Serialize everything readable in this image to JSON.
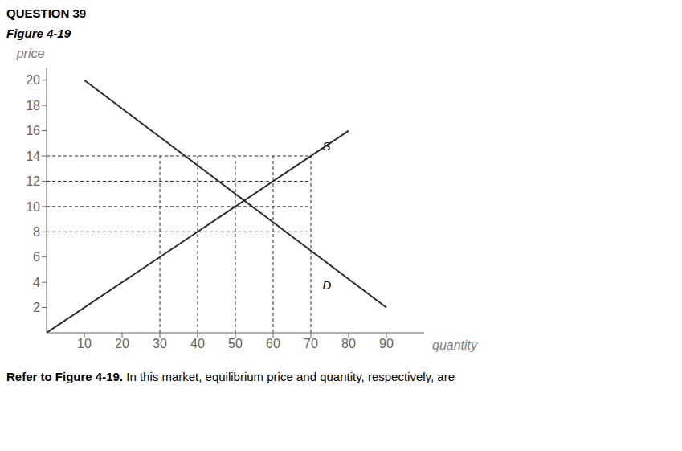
{
  "chart_data": {
    "type": "line",
    "title": "QUESTION 39",
    "subtitle": "Figure 4-19",
    "x_label": "quantity",
    "y_label": "price",
    "xlim": [
      0,
      100
    ],
    "ylim": [
      0,
      21
    ],
    "xticks": [
      10,
      20,
      30,
      40,
      50,
      60,
      70,
      80,
      90
    ],
    "yticks": [
      2,
      4,
      6,
      8,
      10,
      12,
      14,
      16,
      18,
      20
    ],
    "grid": false,
    "series": [
      {
        "x": [
          0,
          80
        ],
        "values": [
          0,
          16
        ],
        "color": "#2b2b2b",
        "line_style": "solid"
      },
      {
        "x": [
          10,
          90
        ],
        "values": [
          20,
          2
        ],
        "color": "#2b2b2b",
        "line_style": "solid"
      },
      {
        "x": [
          30,
          30
        ],
        "values": [
          0,
          14
        ],
        "color": "#2b2b2b",
        "line_style": "dashed"
      },
      {
        "x": [
          40,
          40
        ],
        "values": [
          0,
          14
        ],
        "color": "#2b2b2b",
        "line_style": "dashed"
      },
      {
        "x": [
          50,
          50
        ],
        "values": [
          0,
          14
        ],
        "color": "#2b2b2b",
        "line_style": "dashed"
      },
      {
        "x": [
          60,
          60
        ],
        "values": [
          0,
          14
        ],
        "color": "#2b2b2b",
        "line_style": "dashed"
      },
      {
        "x": [
          70,
          70
        ],
        "values": [
          0,
          14
        ],
        "color": "#2b2b2b",
        "line_style": "dashed"
      },
      {
        "x": [
          0,
          70
        ],
        "values": [
          8,
          8
        ],
        "color": "#2b2b2b",
        "line_style": "dashed"
      },
      {
        "x": [
          0,
          70
        ],
        "values": [
          10,
          10
        ],
        "color": "#2b2b2b",
        "line_style": "dashed"
      },
      {
        "x": [
          0,
          70
        ],
        "values": [
          12,
          12
        ],
        "color": "#2b2b2b",
        "line_style": "dashed"
      },
      {
        "x": [
          0,
          70
        ],
        "values": [
          14,
          14
        ],
        "color": "#2b2b2b",
        "line_style": "dashed"
      }
    ],
    "annotations": [
      {
        "text": "S",
        "x": 72,
        "y": 14.8
      },
      {
        "text": "D",
        "x": 72,
        "y": 3.8
      },
      {
        "text": "Refer to Figure 4-19."
      },
      {
        "text": " In this market, equilibrium price and quantity, respectively, are"
      }
    ]
  }
}
